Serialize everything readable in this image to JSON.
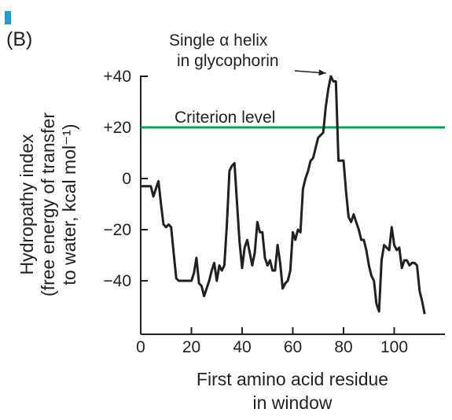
{
  "panel_label": "(B)",
  "colors": {
    "accent_bar": "#1e9bd7",
    "data_line": "#231f20",
    "criterion_line": "#00a65a",
    "axis": "#231f20"
  },
  "chart_data": {
    "type": "line",
    "title": "",
    "xlabel_lines": [
      "First amino acid residue",
      "in window"
    ],
    "ylabel_lines": [
      "Hydropathy index",
      "(free energy of transfer",
      "to water, kcal mol⁻¹)"
    ],
    "xlim": [
      0,
      120
    ],
    "ylim": [
      -60,
      40
    ],
    "x_ticks": [
      0,
      20,
      40,
      60,
      80,
      100
    ],
    "x_tick_labels": [
      "0",
      "20",
      "40",
      "60",
      "80",
      "100"
    ],
    "y_ticks": [
      40,
      20,
      0,
      -20,
      -40
    ],
    "y_tick_labels": [
      "+40",
      "+20",
      "0",
      "−20",
      "−40"
    ],
    "criterion": {
      "value": 20,
      "label": "Criterion level"
    },
    "peak_annotation": {
      "lines": [
        "Single α helix",
        "in glycophorin"
      ],
      "x": 74,
      "y": 40
    },
    "series": [
      {
        "x": [
          0,
          2,
          4,
          5,
          6,
          7,
          8,
          9,
          10,
          11,
          12,
          13,
          14,
          15,
          16,
          17,
          18,
          19,
          20,
          21,
          22,
          23,
          24,
          25,
          26,
          27,
          28,
          29,
          30,
          31,
          32,
          33,
          34,
          35,
          36,
          37,
          38,
          39,
          40,
          41,
          42,
          43,
          44,
          45,
          46,
          47,
          48,
          49,
          50,
          51,
          52,
          53,
          54,
          55,
          56,
          57,
          58,
          59,
          60,
          61,
          62,
          63,
          64,
          65,
          66,
          67,
          68,
          69,
          70,
          71,
          72,
          73,
          74,
          75,
          76,
          77,
          78,
          79,
          80,
          81,
          82,
          83,
          84,
          85,
          86,
          87,
          88,
          89,
          90,
          91,
          92,
          93,
          94,
          95,
          96,
          97,
          98,
          99,
          100,
          101,
          102,
          103,
          104,
          105,
          106,
          107,
          108,
          109,
          110,
          111,
          112
        ],
        "values": [
          -3,
          -3,
          -3,
          -7,
          -4,
          -1,
          -10,
          -18,
          -19,
          -18,
          -19,
          -29,
          -39,
          -40,
          -40,
          -40,
          -40,
          -40,
          -40,
          -37,
          -31,
          -41,
          -42,
          -46,
          -43,
          -40,
          -36,
          -33,
          -40,
          -34,
          -36,
          -34,
          -18,
          3,
          5,
          6,
          -10,
          -25,
          -35,
          -27,
          -24,
          -29,
          -34,
          -29,
          -17,
          -21,
          -21,
          -31,
          -34,
          -32,
          -36,
          -36,
          -26,
          -33,
          -43,
          -41,
          -40,
          -36,
          -21,
          -24,
          -20,
          -21,
          -4,
          0,
          3,
          7,
          8,
          12,
          16,
          17,
          18,
          28,
          35,
          40,
          38,
          38,
          7,
          7,
          7,
          -5,
          -15,
          -17,
          -14,
          -17,
          -20,
          -24,
          -24,
          -28,
          -34,
          -38,
          -40,
          -49,
          -52,
          -32,
          -26,
          -27,
          -28,
          -19,
          -26,
          -28,
          -27,
          -35,
          -32,
          -32,
          -34,
          -33,
          -33,
          -34,
          -44,
          -48,
          -53
        ]
      }
    ]
  }
}
